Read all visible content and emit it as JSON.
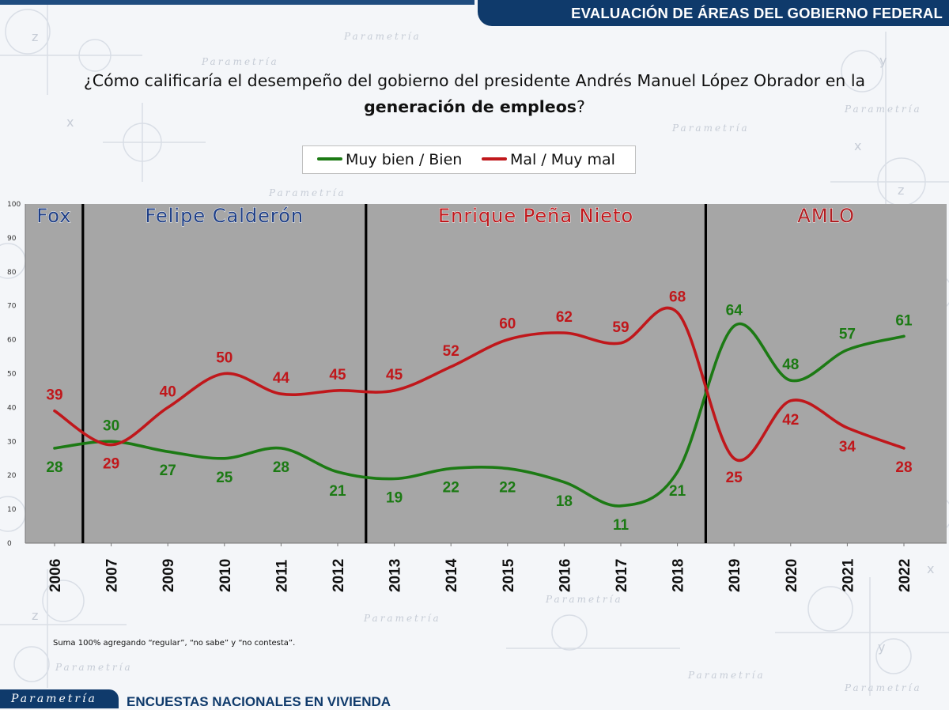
{
  "header": {
    "title": "EVALUACIÓN DE ÁREAS DEL GOBIERNO FEDERAL"
  },
  "question": {
    "part1": "¿Cómo calificaría el desempeño del gobierno del presidente Andrés Manuel López Obrador en la",
    "bold": "generación de empleos",
    "end": "?"
  },
  "watermark": {
    "text": "Parametría"
  },
  "footnote": "Suma 100%  agregando “regular”, “no sabe” y “no contesta”.",
  "footer": {
    "brand": "Parametría",
    "title": "ENCUESTAS NACIONALES EN VIVIENDA"
  },
  "colors": {
    "green": "#1c7a14",
    "red": "#c0171b",
    "blue": "#1f3f86",
    "plot_bg": "#a6a6a6"
  },
  "chart_data": {
    "type": "line",
    "categories": [
      "2006",
      "2007",
      "2009",
      "2010",
      "2011",
      "2012",
      "2013",
      "2014",
      "2015",
      "2016",
      "2017",
      "2018",
      "2019",
      "2020",
      "2021",
      "2022"
    ],
    "series": [
      {
        "name": "Muy bien / Bien",
        "color": "#1c7a14",
        "values": [
          28,
          30,
          27,
          25,
          28,
          21,
          19,
          22,
          22,
          18,
          11,
          21,
          64,
          48,
          57,
          61
        ]
      },
      {
        "name": "Mal / Muy mal",
        "color": "#c0171b",
        "values": [
          39,
          29,
          40,
          50,
          44,
          45,
          45,
          52,
          60,
          62,
          59,
          68,
          25,
          42,
          34,
          28
        ]
      }
    ],
    "ylim": [
      0,
      100
    ],
    "yticks": [
      0,
      10,
      20,
      30,
      40,
      50,
      60,
      70,
      80,
      90,
      100
    ],
    "periods": [
      {
        "label": "Fox",
        "color": "#1f3f86",
        "from": 0,
        "to": 0
      },
      {
        "label": "Felipe Calderón",
        "color": "#1f3f86",
        "from": 1,
        "to": 5
      },
      {
        "label": "Enrique Peña Nieto",
        "color": "#c0171b",
        "from": 6,
        "to": 11
      },
      {
        "label": "AMLO",
        "color": "#b01e22",
        "from": 12,
        "to": 15
      }
    ],
    "legend_position": "top-center"
  }
}
